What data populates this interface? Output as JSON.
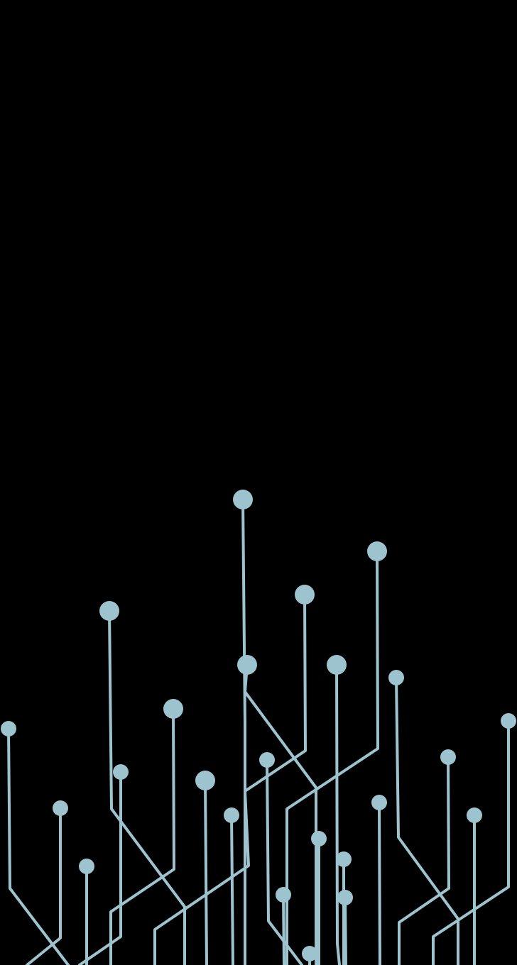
{
  "wallpaper": {
    "description_name": "circuit-traces-wallpaper",
    "background_color": "#000000",
    "trace_color": "#9dc3cf"
  }
}
